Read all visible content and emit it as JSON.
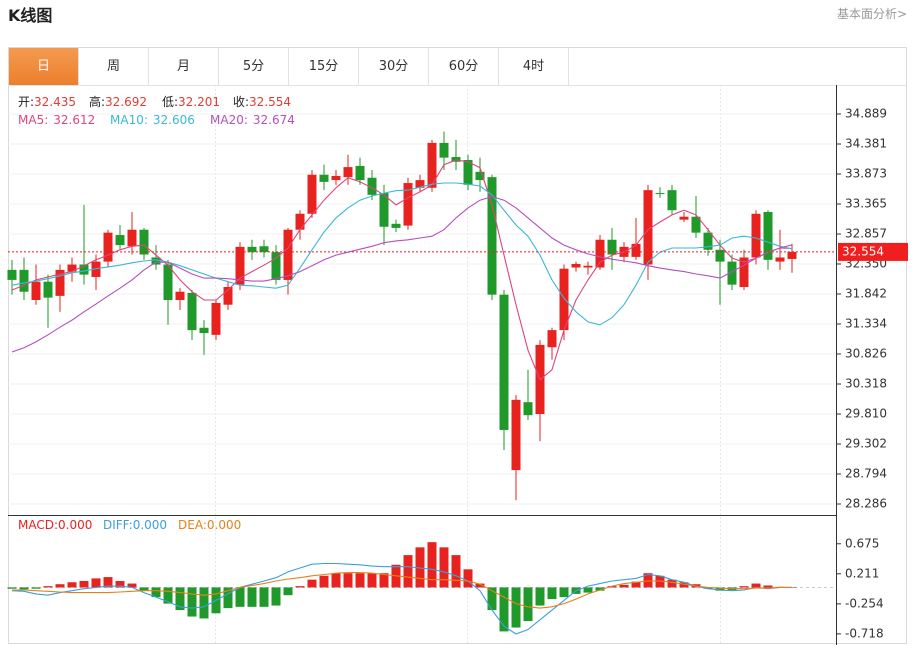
{
  "header": {
    "title": "K线图",
    "link": "基本面分析>"
  },
  "tabs": [
    "日",
    "周",
    "月",
    "5分",
    "15分",
    "30分",
    "60分",
    "4时"
  ],
  "chart_data": [
    {
      "type": "candlestick",
      "up_color": "#e8231f",
      "down_color": "#1f9a2a",
      "info": [
        {
          "label": "开:",
          "value": 32.435
        },
        {
          "label": "高:",
          "value": 32.692
        },
        {
          "label": "低:",
          "value": 32.201
        },
        {
          "label": "收:",
          "value": 32.554
        }
      ],
      "info_value_color": "#e03c30",
      "last_price_color": "#f01e1e",
      "open": [
        32.25,
        32.25,
        31.74,
        32.05,
        31.81,
        32.22,
        32.34,
        32.13,
        32.39,
        32.84,
        32.65,
        32.93,
        32.46,
        32.34,
        31.74,
        31.86,
        31.27,
        31.15,
        31.66,
        32.0,
        32.64,
        32.65,
        32.55,
        32.08,
        32.93,
        33.2,
        33.86,
        33.77,
        33.82,
        34.01,
        33.81,
        33.55,
        33.03,
        33.0,
        33.64,
        33.64,
        34.4,
        34.16,
        34.11,
        33.91,
        33.82,
        31.83,
        28.86,
        30.01,
        29.81,
        30.94,
        31.23,
        32.29,
        32.29,
        32.29,
        32.76,
        32.47,
        32.47,
        32.34,
        33.55,
        33.6,
        33.1,
        33.15,
        32.88,
        32.59,
        32.39,
        31.96,
        32.46,
        33.23,
        32.39,
        32.435
      ],
      "close": [
        32.08,
        31.88,
        32.05,
        31.78,
        32.25,
        32.34,
        32.17,
        32.39,
        32.88,
        32.67,
        32.93,
        32.51,
        32.34,
        31.74,
        31.88,
        31.23,
        31.18,
        31.69,
        31.96,
        32.64,
        32.55,
        32.55,
        32.08,
        32.93,
        33.2,
        33.86,
        33.74,
        33.84,
        33.99,
        33.77,
        33.52,
        32.98,
        32.96,
        33.72,
        33.77,
        34.4,
        34.15,
        34.08,
        33.69,
        33.77,
        31.83,
        29.54,
        30.05,
        29.79,
        30.98,
        31.23,
        32.27,
        32.35,
        32.32,
        32.76,
        32.51,
        32.64,
        32.69,
        33.6,
        33.54,
        33.26,
        33.15,
        32.88,
        32.59,
        32.39,
        32.0,
        32.46,
        33.2,
        32.42,
        32.46,
        32.554
      ],
      "high": [
        32.42,
        32.46,
        32.34,
        32.17,
        32.34,
        32.46,
        33.35,
        32.51,
        32.93,
        33.01,
        33.23,
        32.96,
        32.67,
        32.42,
        31.94,
        31.91,
        31.4,
        31.74,
        32.05,
        32.72,
        32.76,
        32.76,
        32.67,
        32.96,
        33.26,
        33.94,
        34.03,
        33.94,
        34.2,
        34.15,
        33.94,
        33.69,
        33.1,
        33.81,
        33.86,
        34.45,
        34.59,
        34.45,
        34.2,
        34.15,
        33.86,
        31.91,
        30.13,
        30.56,
        31.06,
        31.27,
        32.34,
        32.39,
        32.39,
        32.84,
        32.96,
        32.72,
        33.13,
        33.69,
        33.65,
        33.69,
        33.23,
        33.5,
        32.96,
        32.76,
        32.51,
        32.59,
        33.26,
        33.26,
        32.93,
        32.692
      ],
      "low": [
        31.83,
        31.74,
        31.66,
        31.27,
        31.54,
        32.05,
        32.0,
        31.91,
        32.29,
        32.59,
        32.51,
        32.42,
        32.25,
        31.32,
        31.57,
        31.06,
        30.81,
        31.06,
        31.57,
        31.91,
        32.42,
        32.46,
        32.0,
        31.83,
        32.76,
        33.13,
        33.6,
        33.69,
        33.69,
        33.69,
        33.43,
        32.67,
        32.89,
        32.93,
        33.57,
        33.57,
        33.94,
        33.94,
        33.6,
        33.57,
        31.74,
        29.2,
        28.35,
        29.71,
        29.35,
        30.73,
        31.06,
        32.22,
        32.17,
        32.25,
        32.25,
        32.38,
        32.42,
        32.08,
        33.47,
        33.18,
        33.06,
        32.79,
        32.49,
        31.66,
        31.91,
        31.91,
        32.34,
        32.25,
        32.25,
        32.201
      ],
      "series": [
        {
          "name": "MA5:",
          "last": 32.612,
          "color": "#e0457b",
          "values": [
            31.91,
            31.99,
            32.08,
            32.13,
            32.18,
            32.22,
            32.32,
            32.42,
            32.5,
            32.59,
            32.65,
            32.67,
            32.5,
            32.33,
            32.08,
            31.88,
            31.74,
            31.74,
            31.91,
            32.11,
            32.22,
            32.33,
            32.45,
            32.62,
            32.93,
            33.18,
            33.43,
            33.64,
            33.81,
            33.74,
            33.64,
            33.52,
            33.35,
            33.47,
            33.57,
            33.69,
            34.03,
            34.11,
            34.08,
            33.98,
            33.35,
            32.5,
            31.66,
            30.89,
            30.39,
            30.56,
            31.23,
            31.74,
            32.08,
            32.38,
            32.5,
            32.55,
            32.67,
            32.93,
            33.06,
            33.18,
            33.26,
            33.18,
            32.93,
            32.67,
            32.45,
            32.38,
            32.45,
            32.55,
            32.62,
            32.612
          ]
        },
        {
          "name": "MA10:",
          "last": 32.606,
          "color": "#3bb7d6",
          "values": [
            31.99,
            32.03,
            32.06,
            32.1,
            32.15,
            32.2,
            32.23,
            32.27,
            32.3,
            32.33,
            32.37,
            32.4,
            32.42,
            32.38,
            32.32,
            32.25,
            32.18,
            32.11,
            32.05,
            31.99,
            31.98,
            31.96,
            31.94,
            31.99,
            32.28,
            32.59,
            32.89,
            33.13,
            33.3,
            33.43,
            33.5,
            33.55,
            33.59,
            33.6,
            33.65,
            33.7,
            33.72,
            33.72,
            33.7,
            33.67,
            33.52,
            33.26,
            33.01,
            32.82,
            32.5,
            32.08,
            31.77,
            31.54,
            31.37,
            31.32,
            31.44,
            31.66,
            31.99,
            32.38,
            32.55,
            32.62,
            32.62,
            32.62,
            32.64,
            32.67,
            32.79,
            32.82,
            32.79,
            32.72,
            32.65,
            32.606
          ]
        },
        {
          "name": "MA20:",
          "last": 32.674,
          "color": "#b54fc0",
          "values": [
            30.86,
            30.93,
            31.03,
            31.15,
            31.28,
            31.4,
            31.54,
            31.67,
            31.81,
            31.94,
            32.08,
            32.25,
            32.38,
            32.38,
            32.28,
            32.18,
            32.11,
            32.11,
            32.1,
            32.08,
            32.06,
            32.06,
            32.1,
            32.15,
            32.22,
            32.32,
            32.42,
            32.5,
            32.55,
            32.6,
            32.65,
            32.71,
            32.74,
            32.76,
            32.79,
            32.82,
            32.93,
            33.13,
            33.3,
            33.43,
            33.49,
            33.43,
            33.3,
            33.13,
            32.96,
            32.79,
            32.67,
            32.59,
            32.52,
            32.47,
            32.43,
            32.4,
            32.37,
            32.32,
            32.28,
            32.25,
            32.22,
            32.18,
            32.15,
            32.11,
            32.22,
            32.33,
            32.45,
            32.55,
            32.62,
            32.674
          ]
        }
      ],
      "ylim": [
        28.1,
        35.38
      ],
      "yticks": [
        34.889,
        34.381,
        33.873,
        33.365,
        32.857,
        {
          "value": 32.35,
          "label": "32.350"
        },
        31.842,
        31.334,
        30.826,
        30.318,
        {
          "value": 29.81,
          "label": "29.810"
        },
        29.302,
        28.794,
        28.286
      ],
      "grid": true
    },
    {
      "type": "macd",
      "legend": [
        {
          "label": "MACD:",
          "value": "0.000",
          "color": "#e8231f"
        },
        {
          "label": "DIFF:",
          "value": "0.000",
          "color": "#3a9fe0"
        },
        {
          "label": "DEA:",
          "value": "0.000",
          "color": "#e8801a"
        }
      ],
      "up_color": "#e8231f",
      "down_color": "#1f9a2a",
      "histogram": [
        -0.02,
        -0.03,
        -0.02,
        0.02,
        0.05,
        0.08,
        0.1,
        0.14,
        0.16,
        0.1,
        0.06,
        -0.05,
        -0.15,
        -0.25,
        -0.35,
        -0.45,
        -0.48,
        -0.4,
        -0.32,
        -0.3,
        -0.3,
        -0.3,
        -0.28,
        -0.12,
        0.02,
        0.12,
        0.18,
        0.22,
        0.22,
        0.22,
        0.22,
        0.22,
        0.35,
        0.5,
        0.62,
        0.7,
        0.62,
        0.5,
        0.28,
        0.06,
        -0.35,
        -0.68,
        -0.62,
        -0.52,
        -0.28,
        -0.18,
        -0.15,
        -0.1,
        -0.08,
        -0.05,
        0.02,
        0.04,
        0.09,
        0.22,
        0.18,
        0.12,
        0.08,
        0.05,
        -0.02,
        -0.05,
        -0.04,
        0.02,
        0.06,
        0.03,
        0.01,
        0.0
      ],
      "series": [
        {
          "name": "DIFF",
          "color": "#3a9fe0",
          "values": [
            -0.05,
            -0.06,
            -0.1,
            -0.12,
            -0.08,
            -0.05,
            -0.02,
            0.0,
            0.02,
            0.02,
            0.0,
            -0.08,
            -0.15,
            -0.22,
            -0.3,
            -0.32,
            -0.3,
            -0.2,
            -0.1,
            0.0,
            0.05,
            0.1,
            0.15,
            0.24,
            0.3,
            0.36,
            0.37,
            0.37,
            0.36,
            0.35,
            0.33,
            0.32,
            0.32,
            0.32,
            0.3,
            0.28,
            0.24,
            0.18,
            0.1,
            -0.05,
            -0.35,
            -0.6,
            -0.72,
            -0.65,
            -0.5,
            -0.35,
            -0.2,
            -0.05,
            0.02,
            0.06,
            0.1,
            0.12,
            0.14,
            0.2,
            0.18,
            0.12,
            0.08,
            0.02,
            -0.02,
            -0.04,
            -0.05,
            -0.04,
            0.0,
            -0.02,
            0.0,
            0.0
          ]
        },
        {
          "name": "DEA",
          "color": "#e8801a",
          "values": [
            -0.04,
            -0.04,
            -0.05,
            -0.06,
            -0.07,
            -0.08,
            -0.08,
            -0.08,
            -0.08,
            -0.07,
            -0.06,
            -0.05,
            -0.05,
            -0.06,
            -0.08,
            -0.1,
            -0.12,
            -0.1,
            -0.05,
            0.0,
            0.03,
            0.06,
            0.1,
            0.13,
            0.15,
            0.18,
            0.2,
            0.22,
            0.23,
            0.23,
            0.22,
            0.2,
            0.18,
            0.16,
            0.14,
            0.12,
            0.12,
            0.11,
            0.1,
            0.05,
            -0.05,
            -0.15,
            -0.25,
            -0.3,
            -0.32,
            -0.3,
            -0.25,
            -0.18,
            -0.1,
            -0.04,
            0.02,
            0.06,
            0.08,
            0.1,
            0.1,
            0.08,
            0.05,
            0.02,
            0.0,
            -0.01,
            -0.02,
            -0.02,
            -0.01,
            -0.01,
            0.0,
            0.0
          ]
        }
      ],
      "ylim": [
        -0.89,
        1.12
      ],
      "yticks": [
        0.675,
        0.211,
        -0.254,
        -0.718
      ]
    }
  ]
}
